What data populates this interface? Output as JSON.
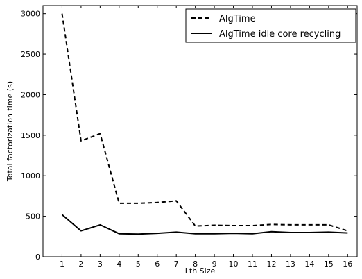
{
  "chart_data": {
    "type": "line",
    "title": "",
    "xlabel": "Lth Size",
    "ylabel": "Total factorization time (s)",
    "x": [
      1,
      2,
      3,
      4,
      5,
      6,
      7,
      8,
      9,
      10,
      11,
      12,
      13,
      14,
      15,
      16
    ],
    "x_ticks": [
      "1",
      "2",
      "3",
      "4",
      "5",
      "6",
      "7",
      "8",
      "9",
      "10",
      "11",
      "12",
      "13",
      "14",
      "15",
      "16"
    ],
    "y_ticks": [
      "0",
      "500",
      "1000",
      "1500",
      "2000",
      "2500",
      "3000"
    ],
    "xlim": [
      0,
      16.5
    ],
    "ylim": [
      0,
      3100
    ],
    "grid": false,
    "legend_position": "top-right",
    "series": [
      {
        "name": "AlgTime",
        "style": "dashed",
        "color": "#000000",
        "values": [
          3000,
          1430,
          1520,
          660,
          660,
          670,
          690,
          380,
          390,
          385,
          385,
          400,
          395,
          395,
          395,
          320
        ]
      },
      {
        "name": "AlgTime idle core recycling",
        "style": "solid",
        "color": "#000000",
        "values": [
          520,
          320,
          395,
          285,
          280,
          290,
          305,
          285,
          285,
          290,
          285,
          310,
          300,
          300,
          305,
          295
        ]
      }
    ]
  }
}
